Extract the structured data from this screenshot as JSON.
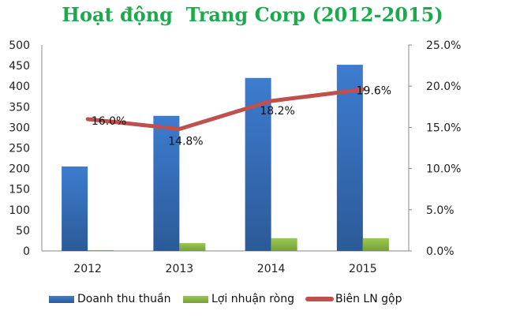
{
  "chart_data": {
    "type": "bar",
    "title": "Hoạt động  Trang Corp (2012-2015)",
    "categories": [
      "2012",
      "2013",
      "2014",
      "2015"
    ],
    "series": [
      {
        "name": "Doanh thu thuần",
        "type": "bar",
        "axis": "left",
        "color": "#3a6fbf",
        "values": [
          205,
          328,
          420,
          452
        ]
      },
      {
        "name": "Lợi nhuận ròng",
        "type": "bar",
        "axis": "left",
        "color": "#8cbf44",
        "values": [
          2,
          19,
          31,
          31
        ]
      },
      {
        "name": "Biên LN gộp",
        "type": "line",
        "axis": "right",
        "color": "#c0504d",
        "values": [
          16.0,
          14.8,
          18.2,
          19.6
        ],
        "labels": [
          "16.0%",
          "14.8%",
          "18.2%",
          "19.6%"
        ]
      }
    ],
    "left_axis": {
      "ylim": [
        0,
        500
      ],
      "ticks": [
        "0",
        "50",
        "100",
        "150",
        "200",
        "250",
        "300",
        "350",
        "400",
        "450",
        "500"
      ]
    },
    "right_axis": {
      "ylim": [
        0,
        25
      ],
      "ticks": [
        "0.0%",
        "5.0%",
        "10.0%",
        "15.0%",
        "20.0%",
        "25.0%"
      ]
    },
    "grid": false,
    "legend": "bottom"
  }
}
